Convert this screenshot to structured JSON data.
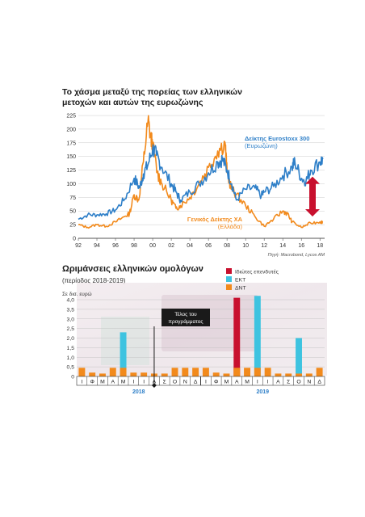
{
  "chart1": {
    "title_line1": "Το χάσμα μεταξύ της πορείας των ελληνικών",
    "title_line2": "μετοχών και αυτών της ευρωζώνης",
    "source": "Πηγή: Macrobond, Lycos AM",
    "colors": {
      "eurostoxx": "#2e7fc8",
      "greek": "#f28a1c",
      "arrow": "#c8102e",
      "grid": "#cccccc"
    },
    "chart_data": {
      "type": "line",
      "ylim": [
        0,
        225
      ],
      "xlim": [
        1992,
        2018.5
      ],
      "yticks": [
        "0",
        "25",
        "50",
        "75",
        "100",
        "125",
        "150",
        "175",
        "200",
        "225"
      ],
      "ytick_values": [
        0,
        25,
        50,
        75,
        100,
        125,
        150,
        175,
        200,
        225
      ],
      "xticks": [
        "92",
        "94",
        "96",
        "98",
        "00",
        "02",
        "04",
        "06",
        "08",
        "10",
        "12",
        "14",
        "16",
        "18"
      ],
      "xtick_values": [
        1992,
        1994,
        1996,
        1998,
        2000,
        2002,
        2004,
        2006,
        2008,
        2010,
        2012,
        2014,
        2016,
        2018
      ],
      "series": [
        {
          "name": "Δείκτης Eurostoxx 300",
          "label_line1": "Δείκτης Eurostoxx 300",
          "label_line2": "(Ευρωζώνη)",
          "x": [
            1992,
            1993,
            1994,
            1995,
            1996,
            1997,
            1998,
            1998.6,
            1999,
            1999.5,
            2000,
            2000.4,
            2001,
            2002,
            2002.5,
            2003,
            2004,
            2005,
            2006,
            2007,
            2007.5,
            2008,
            2008.5,
            2009,
            2010,
            2011,
            2011.7,
            2012,
            2013,
            2014,
            2015,
            2015.3,
            2016,
            2016.5,
            2017,
            2018,
            2018.3
          ],
          "y": [
            35,
            43,
            43,
            45,
            52,
            72,
            110,
            92,
            118,
            135,
            165,
            152,
            130,
            100,
            85,
            70,
            85,
            100,
            120,
            140,
            145,
            125,
            100,
            70,
            90,
            92,
            78,
            85,
            95,
            115,
            130,
            140,
            110,
            105,
            125,
            140,
            145
          ]
        },
        {
          "name": "Γενικός Δείκτης ΧΑ",
          "label_line1": "Γενικός Δείκτης ΧΑ",
          "label_line2": "(Ελλάδα)",
          "x": [
            1992,
            1993,
            1994,
            1995,
            1996,
            1997,
            1997.5,
            1998,
            1998.5,
            1999,
            1999.5,
            1999.8,
            2000,
            2000.5,
            2001,
            2002,
            2002.5,
            2003,
            2004,
            2005,
            2006,
            2007,
            2007.8,
            2008,
            2008.5,
            2009,
            2010,
            2011,
            2012,
            2013,
            2014,
            2014.5,
            2015,
            2016,
            2017,
            2018,
            2018.3
          ],
          "y": [
            25,
            20,
            25,
            22,
            30,
            40,
            45,
            80,
            70,
            140,
            215,
            185,
            170,
            120,
            100,
            70,
            55,
            60,
            75,
            100,
            130,
            160,
            175,
            120,
            90,
            80,
            60,
            40,
            22,
            35,
            50,
            45,
            30,
            20,
            28,
            30,
            30
          ]
        }
      ]
    }
  },
  "chart2": {
    "title": "Ωριμάνσεις ελληνικών ομολόγων",
    "subtitle": "(περίοδος 2018-2019)",
    "unit_label": "Σε δισ. ευρώ",
    "annotation_line1": "Τέλος του",
    "annotation_line2": "προγράμματος",
    "legend": [
      {
        "label": "Ιδιώτες επενδυτές",
        "color": "#c8102e"
      },
      {
        "label": "ΕΚΤ",
        "color": "#3ec3e0"
      },
      {
        "label": "ΔΝΤ",
        "color": "#f28a1c"
      }
    ],
    "chart_data": {
      "type": "bar",
      "ylim": [
        0,
        4.0
      ],
      "yticks": [
        "0",
        "0,5",
        "1,0",
        "1,5",
        "2,0",
        "2,5",
        "3,0",
        "3,5",
        "4,0"
      ],
      "ytick_values": [
        0,
        0.5,
        1.0,
        1.5,
        2.0,
        2.5,
        3.0,
        3.5,
        4.0
      ],
      "categories": [
        "Ι",
        "Φ",
        "Μ",
        "Α",
        "Μ",
        "Ι",
        "Ι",
        "Α",
        "Σ",
        "Ο",
        "Ν",
        "Δ",
        "Ι",
        "Φ",
        "Μ",
        "Α",
        "Μ",
        "Ι",
        "Ι",
        "Α",
        "Σ",
        "Ο",
        "Ν",
        "Δ"
      ],
      "years": [
        {
          "label": "2018",
          "start_index": 0,
          "end_index": 11
        },
        {
          "label": "2019",
          "start_index": 12,
          "end_index": 23
        }
      ],
      "annotation_index": 7,
      "series": [
        {
          "name": "Ιδιώτες επενδυτές",
          "values": [
            0,
            0,
            0,
            0,
            0,
            0,
            0,
            0,
            0,
            0,
            0,
            0,
            0,
            0,
            0,
            4.1,
            0,
            0,
            0,
            0,
            0,
            0,
            0,
            0
          ]
        },
        {
          "name": "ΕΚΤ",
          "values": [
            0,
            0,
            0,
            0,
            2.3,
            0,
            0,
            0,
            0,
            0,
            0,
            0,
            0,
            0,
            0,
            0,
            0,
            4.2,
            0,
            0,
            0,
            2.0,
            0,
            0
          ]
        },
        {
          "name": "ΔΝΤ",
          "values": [
            0.45,
            0.2,
            0.15,
            0.45,
            0.45,
            0.2,
            0.2,
            0.15,
            0.15,
            0.45,
            0.45,
            0.45,
            0.45,
            0.2,
            0.15,
            0.45,
            0.45,
            0.45,
            0.45,
            0.15,
            0.15,
            0.15,
            0.15,
            0.45
          ]
        }
      ]
    }
  }
}
